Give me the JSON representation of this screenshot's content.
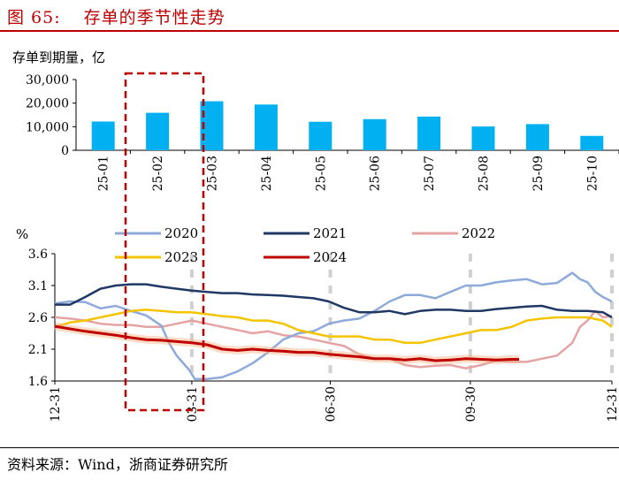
{
  "figure": {
    "number": "图 65:",
    "title": "存单的季节性走势",
    "source": "资料来源：Wind，浙商证券研究所"
  },
  "colors": {
    "title": "#c00000",
    "bar": "#00b0f0",
    "highlight_box": "#c00000",
    "series_2020": "#8eaadb",
    "series_2021": "#1f3864",
    "series_2022": "#e6a3a3",
    "series_2023": "#f5c400",
    "series_2024": "#c00000"
  },
  "chart_data": [
    {
      "type": "bar",
      "title": "",
      "ylabel": "存单到期量，亿",
      "categories": [
        "25-01",
        "25-02",
        "25-03",
        "25-04",
        "25-05",
        "25-06",
        "25-07",
        "25-08",
        "25-09",
        "25-10"
      ],
      "values": [
        12200,
        15900,
        20800,
        19400,
        12100,
        13200,
        14300,
        10100,
        11100,
        6100
      ],
      "ylim": [
        0,
        30000
      ],
      "yticks": [
        "30,000",
        "20,000",
        "10,000",
        "0"
      ],
      "highlight": [
        "25-02",
        "25-03"
      ]
    },
    {
      "type": "line",
      "ylabel": "%",
      "ylim": [
        1.6,
        3.6
      ],
      "yticks": [
        "3.6",
        "3.1",
        "2.6",
        "2.1",
        "1.6"
      ],
      "xticks": [
        "12-31",
        "03-31",
        "06-30",
        "09-30",
        "12-31"
      ],
      "legend": "top",
      "series": [
        {
          "name": "2020",
          "x": [
            0,
            10,
            20,
            30,
            40,
            50,
            60,
            70,
            75,
            80,
            88,
            92,
            100,
            110,
            120,
            130,
            140,
            150,
            160,
            170,
            180,
            190,
            200,
            210,
            220,
            230,
            240,
            250,
            260,
            270,
            280,
            290,
            300,
            310,
            320,
            330,
            340,
            345,
            350,
            355,
            360,
            366
          ],
          "values": [
            2.82,
            2.85,
            2.84,
            2.74,
            2.78,
            2.7,
            2.63,
            2.47,
            2.2,
            2.0,
            1.78,
            1.63,
            1.63,
            1.66,
            1.75,
            1.88,
            2.05,
            2.25,
            2.35,
            2.38,
            2.5,
            2.55,
            2.58,
            2.7,
            2.85,
            2.95,
            2.95,
            2.9,
            3.0,
            3.1,
            3.1,
            3.15,
            3.18,
            3.2,
            3.12,
            3.14,
            3.3,
            3.2,
            3.15,
            3.0,
            2.92,
            2.85
          ]
        },
        {
          "name": "2021",
          "x": [
            0,
            10,
            20,
            30,
            40,
            50,
            60,
            70,
            80,
            90,
            100,
            110,
            120,
            130,
            140,
            150,
            160,
            170,
            180,
            190,
            200,
            210,
            220,
            230,
            240,
            250,
            260,
            270,
            280,
            290,
            300,
            310,
            320,
            330,
            340,
            350,
            360,
            366
          ],
          "values": [
            2.8,
            2.8,
            2.92,
            3.05,
            3.1,
            3.12,
            3.12,
            3.08,
            3.05,
            3.02,
            3.0,
            2.98,
            2.98,
            2.96,
            2.95,
            2.94,
            2.92,
            2.9,
            2.85,
            2.75,
            2.68,
            2.68,
            2.7,
            2.65,
            2.7,
            2.72,
            2.72,
            2.7,
            2.7,
            2.73,
            2.75,
            2.77,
            2.78,
            2.72,
            2.7,
            2.7,
            2.68,
            2.6
          ]
        },
        {
          "name": "2022",
          "x": [
            0,
            10,
            20,
            30,
            40,
            50,
            60,
            70,
            80,
            90,
            100,
            110,
            120,
            130,
            140,
            150,
            160,
            170,
            180,
            190,
            200,
            210,
            220,
            230,
            240,
            250,
            260,
            270,
            280,
            290,
            300,
            310,
            320,
            330,
            340,
            345,
            350,
            355,
            360,
            366
          ],
          "values": [
            2.6,
            2.58,
            2.55,
            2.5,
            2.48,
            2.48,
            2.45,
            2.45,
            2.5,
            2.55,
            2.5,
            2.45,
            2.4,
            2.35,
            2.38,
            2.32,
            2.3,
            2.25,
            2.2,
            2.15,
            2.02,
            1.95,
            1.95,
            1.85,
            1.82,
            1.84,
            1.85,
            1.8,
            1.85,
            1.92,
            1.9,
            1.9,
            1.95,
            2.0,
            2.2,
            2.45,
            2.55,
            2.7,
            2.6,
            2.62
          ]
        },
        {
          "name": "2023",
          "x": [
            0,
            10,
            20,
            30,
            40,
            50,
            60,
            70,
            80,
            90,
            100,
            110,
            120,
            130,
            140,
            150,
            160,
            170,
            180,
            190,
            200,
            210,
            220,
            230,
            240,
            250,
            260,
            270,
            280,
            290,
            300,
            310,
            320,
            330,
            340,
            350,
            360,
            366
          ],
          "values": [
            2.45,
            2.52,
            2.55,
            2.6,
            2.65,
            2.7,
            2.72,
            2.7,
            2.68,
            2.68,
            2.65,
            2.62,
            2.6,
            2.55,
            2.55,
            2.5,
            2.4,
            2.35,
            2.3,
            2.3,
            2.3,
            2.25,
            2.25,
            2.2,
            2.2,
            2.25,
            2.3,
            2.35,
            2.4,
            2.4,
            2.45,
            2.55,
            2.58,
            2.6,
            2.6,
            2.6,
            2.55,
            2.45
          ]
        },
        {
          "name": "2024",
          "x": [
            0,
            10,
            20,
            30,
            40,
            50,
            60,
            70,
            80,
            90,
            100,
            110,
            120,
            130,
            140,
            150,
            160,
            170,
            180,
            190,
            200,
            210,
            220,
            230,
            240,
            250,
            260,
            270,
            280,
            290,
            300,
            305
          ],
          "values": [
            2.46,
            2.42,
            2.38,
            2.35,
            2.32,
            2.28,
            2.25,
            2.24,
            2.22,
            2.2,
            2.17,
            2.1,
            2.08,
            2.1,
            2.08,
            2.07,
            2.05,
            2.05,
            2.02,
            2.0,
            1.98,
            1.95,
            1.95,
            1.93,
            1.95,
            1.92,
            1.93,
            1.95,
            1.94,
            1.93,
            1.94,
            1.94
          ]
        }
      ]
    }
  ]
}
